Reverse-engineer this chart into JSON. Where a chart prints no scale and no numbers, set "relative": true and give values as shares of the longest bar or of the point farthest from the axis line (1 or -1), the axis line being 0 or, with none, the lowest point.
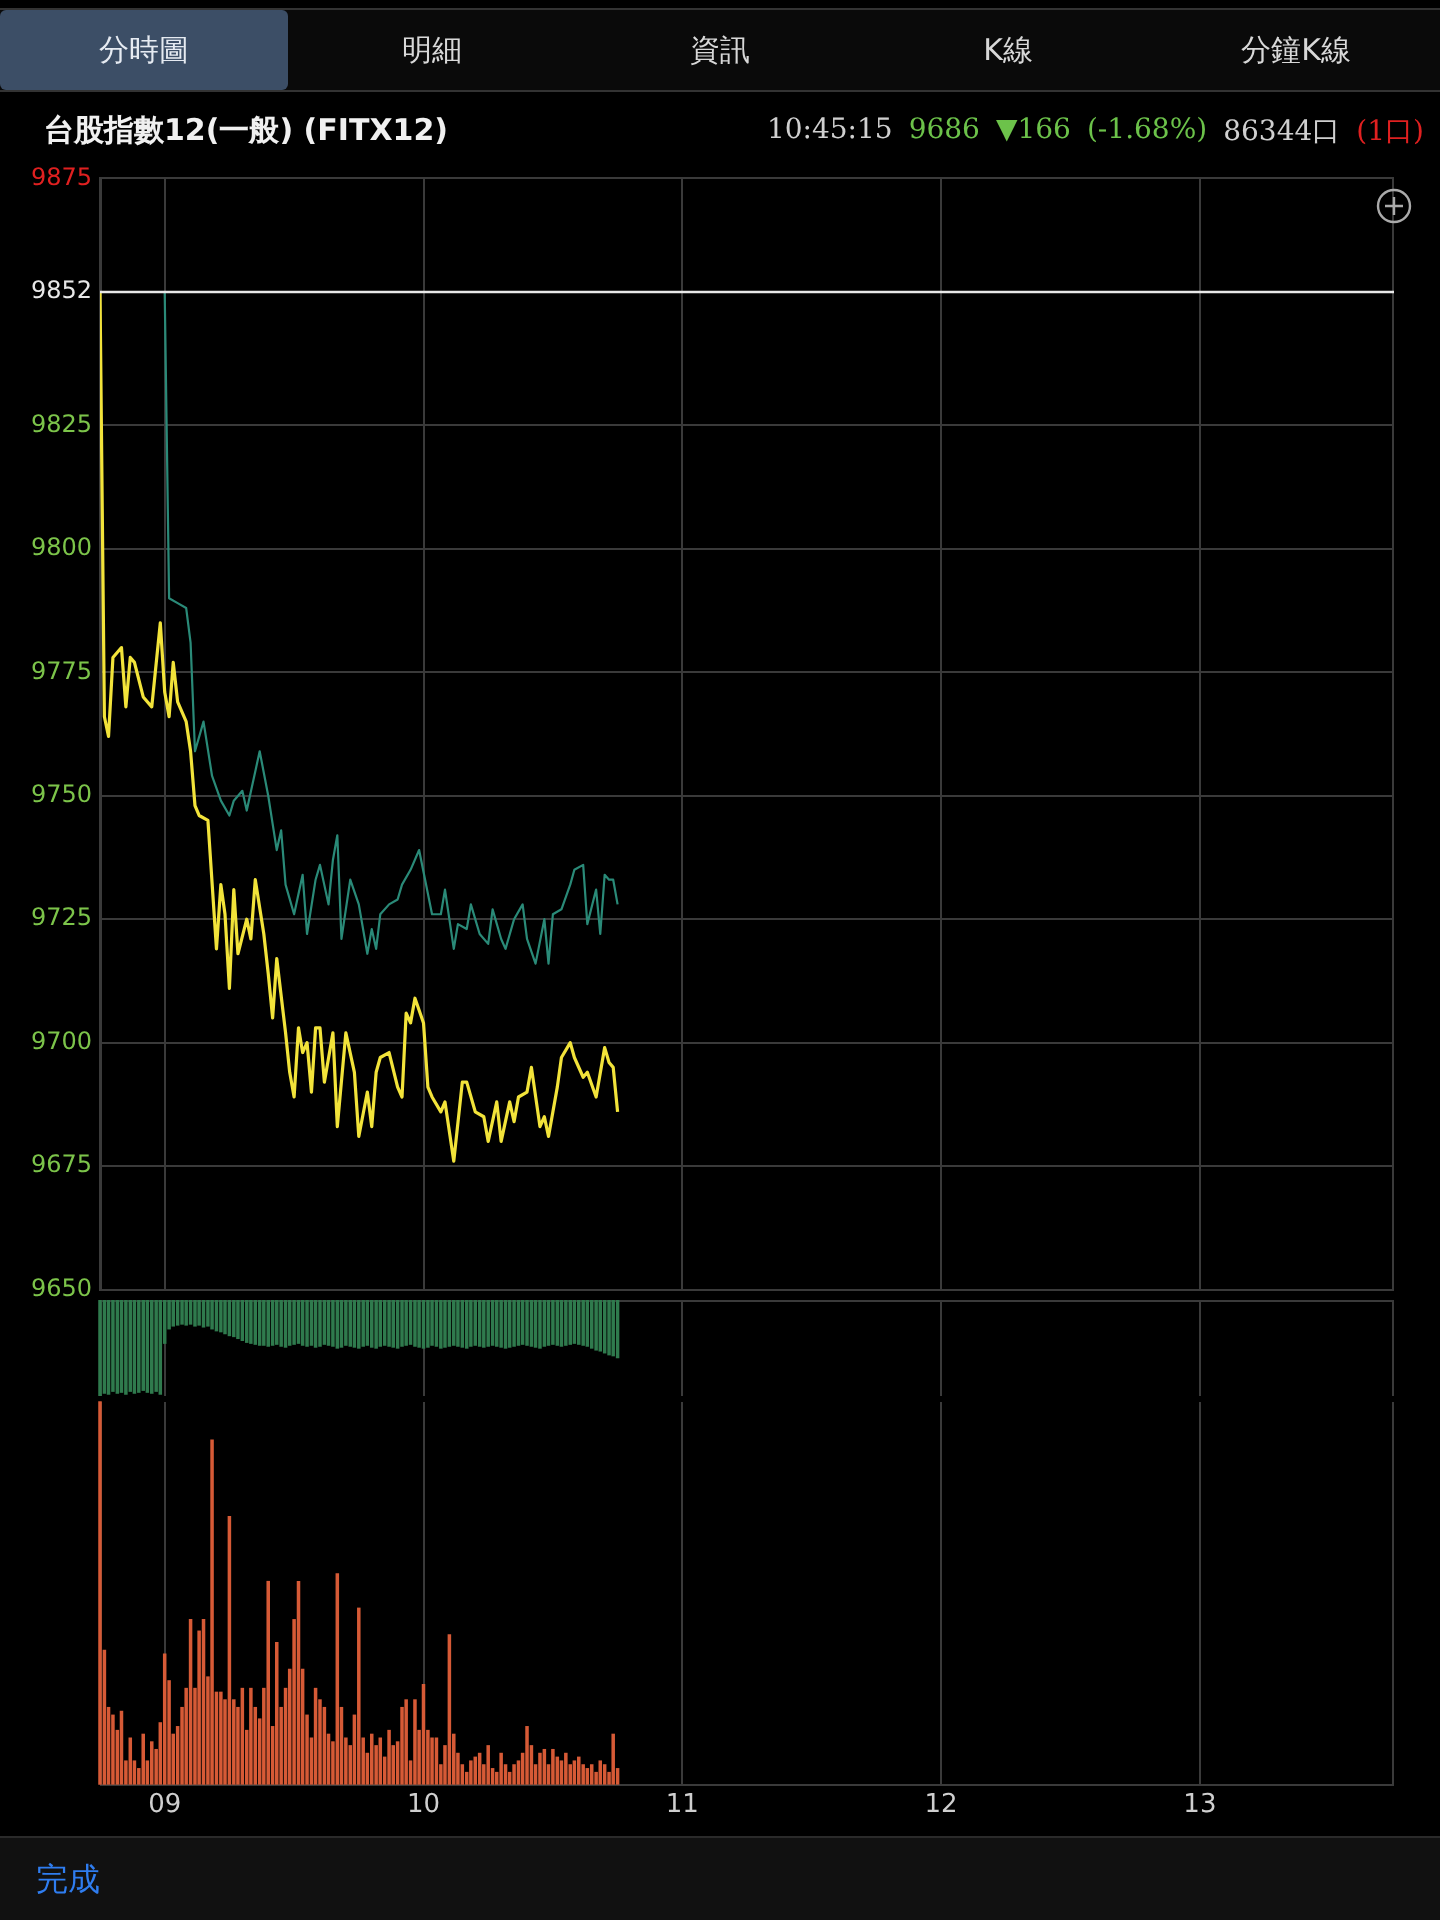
{
  "chart_data": [
    {
      "type": "line",
      "title": "台股指數12(一般) (FITX12)",
      "annotations": [
        "分時圖",
        "明細",
        "資訊",
        "K線",
        "分鐘K線",
        "10:45:15",
        "9686",
        "▼166",
        "(-1.68%)",
        "86344口",
        "(1口)",
        "完成"
      ],
      "xlim": [
        8.75,
        13.75
      ],
      "ylim": [
        9650,
        9875
      ],
      "yticks": [
        9650,
        9675,
        9700,
        9725,
        9750,
        9775,
        9800,
        9825,
        9852,
        9875
      ],
      "grid": true,
      "tick_labels": "y",
      "marker": "none",
      "line_style": "solid",
      "ref_lines": [
        {
          "axis": "y",
          "value": 9852,
          "color": "#e8e8e8"
        }
      ],
      "series": [
        {
          "color": "#f2e33a",
          "x": [
            8.75,
            8.767,
            8.783,
            8.8,
            8.833,
            8.85,
            8.867,
            8.883,
            8.917,
            8.95,
            8.983,
            9.0,
            9.017,
            9.033,
            9.05,
            9.083,
            9.1,
            9.117,
            9.133,
            9.167,
            9.2,
            9.217,
            9.233,
            9.25,
            9.267,
            9.283,
            9.317,
            9.333,
            9.35,
            9.383,
            9.4,
            9.417,
            9.433,
            9.467,
            9.483,
            9.5,
            9.517,
            9.533,
            9.55,
            9.567,
            9.583,
            9.6,
            9.617,
            9.65,
            9.667,
            9.7,
            9.733,
            9.75,
            9.783,
            9.8,
            9.817,
            9.833,
            9.867,
            9.9,
            9.917,
            9.933,
            9.95,
            9.967,
            10.0,
            10.017,
            10.033,
            10.067,
            10.083,
            10.117,
            10.15,
            10.167,
            10.2,
            10.233,
            10.25,
            10.283,
            10.3,
            10.333,
            10.35,
            10.367,
            10.4,
            10.417,
            10.45,
            10.467,
            10.483,
            10.517,
            10.533,
            10.567,
            10.583,
            10.617,
            10.633,
            10.667,
            10.7,
            10.717,
            10.733,
            10.75
          ],
          "values": [
            9852,
            9766,
            9762,
            9778,
            9780,
            9768,
            9778,
            9777,
            9770,
            9768,
            9785,
            9771,
            9766,
            9777,
            9769,
            9765,
            9759,
            9748,
            9746,
            9745,
            9719,
            9732,
            9726,
            9711,
            9731,
            9718,
            9725,
            9721,
            9733,
            9722,
            9714,
            9705,
            9717,
            9702,
            9694,
            9689,
            9703,
            9698,
            9700,
            9690,
            9703,
            9703,
            9692,
            9702,
            9683,
            9702,
            9694,
            9681,
            9690,
            9683,
            9694,
            9697,
            9698,
            9691,
            9689,
            9706,
            9704,
            9709,
            9704,
            9691,
            9689,
            9686,
            9688,
            9676,
            9692,
            9692,
            9686,
            9685,
            9680,
            9688,
            9680,
            9688,
            9684,
            9689,
            9690,
            9695,
            9683,
            9685,
            9681,
            9691,
            9697,
            9700,
            9697,
            9693,
            9694,
            9689,
            9699,
            9696,
            9695,
            9686
          ]
        },
        {
          "color": "#2a8a78",
          "x": [
            9.0,
            9.017,
            9.05,
            9.083,
            9.1,
            9.117,
            9.15,
            9.183,
            9.217,
            9.25,
            9.267,
            9.3,
            9.317,
            9.367,
            9.4,
            9.433,
            9.45,
            9.467,
            9.5,
            9.533,
            9.55,
            9.583,
            9.6,
            9.633,
            9.65,
            9.667,
            9.683,
            9.717,
            9.75,
            9.783,
            9.8,
            9.817,
            9.833,
            9.867,
            9.9,
            9.917,
            9.95,
            9.983,
            10.033,
            10.067,
            10.083,
            10.117,
            10.133,
            10.167,
            10.183,
            10.217,
            10.25,
            10.267,
            10.3,
            10.317,
            10.35,
            10.383,
            10.4,
            10.433,
            10.467,
            10.483,
            10.5,
            10.533,
            10.567,
            10.583,
            10.617,
            10.633,
            10.667,
            10.683,
            10.7,
            10.717,
            10.733,
            10.75
          ],
          "values": [
            9852,
            9790,
            9789,
            9788,
            9781,
            9759,
            9765,
            9754,
            9749,
            9746,
            9749,
            9751,
            9747,
            9759,
            9750,
            9739,
            9743,
            9732,
            9726,
            9734,
            9722,
            9733,
            9736,
            9728,
            9737,
            9742,
            9721,
            9733,
            9728,
            9718,
            9723,
            9719,
            9726,
            9728,
            9729,
            9732,
            9735,
            9739,
            9726,
            9726,
            9731,
            9719,
            9724,
            9723,
            9728,
            9722,
            9720,
            9727,
            9721,
            9719,
            9725,
            9728,
            9721,
            9716,
            9725,
            9716,
            9726,
            9727,
            9732,
            9735,
            9736,
            9724,
            9731,
            9722,
            9734,
            9733,
            9733,
            9728
          ]
        }
      ]
    },
    {
      "type": "bar",
      "relative": true,
      "xlim": [
        8.75,
        13.75
      ],
      "grid": "x",
      "tick_labels": false,
      "series": [
        {
          "color": "#2f7a4d",
          "x": [
            8.75,
            8.767,
            8.783,
            8.8,
            8.817,
            8.833,
            8.85,
            8.867,
            8.883,
            8.9,
            8.917,
            8.933,
            8.95,
            8.967,
            8.983,
            9.0,
            9.017,
            9.033,
            9.05,
            9.067,
            9.083,
            9.1,
            9.117,
            9.133,
            9.15,
            9.167,
            9.183,
            9.2,
            9.217,
            9.233,
            9.25,
            9.267,
            9.283,
            9.3,
            9.317,
            9.333,
            9.35,
            9.367,
            9.383,
            9.4,
            9.417,
            9.433,
            9.45,
            9.467,
            9.483,
            9.5,
            9.517,
            9.533,
            9.55,
            9.567,
            9.583,
            9.6,
            9.617,
            9.633,
            9.65,
            9.667,
            9.683,
            9.7,
            9.717,
            9.733,
            9.75,
            9.767,
            9.783,
            9.8,
            9.817,
            9.833,
            9.85,
            9.867,
            9.883,
            9.9,
            9.917,
            9.933,
            9.95,
            9.967,
            9.983,
            10.0,
            10.017,
            10.033,
            10.05,
            10.067,
            10.083,
            10.1,
            10.117,
            10.133,
            10.15,
            10.167,
            10.183,
            10.2,
            10.217,
            10.233,
            10.25,
            10.267,
            10.283,
            10.3,
            10.317,
            10.333,
            10.35,
            10.367,
            10.383,
            10.4,
            10.417,
            10.433,
            10.45,
            10.467,
            10.483,
            10.5,
            10.517,
            10.533,
            10.55,
            10.567,
            10.583,
            10.6,
            10.617,
            10.633,
            10.65,
            10.667,
            10.683,
            10.7,
            10.717,
            10.733,
            10.75
          ],
          "values": [
            -1,
            -0.97,
            -0.98,
            -0.95,
            -0.97,
            -0.96,
            -0.98,
            -0.95,
            -0.97,
            -0.96,
            -0.94,
            -0.96,
            -0.97,
            -0.95,
            -0.98,
            -0.45,
            -0.3,
            -0.27,
            -0.26,
            -0.25,
            -0.26,
            -0.25,
            -0.27,
            -0.26,
            -0.28,
            -0.27,
            -0.3,
            -0.32,
            -0.33,
            -0.35,
            -0.37,
            -0.38,
            -0.4,
            -0.42,
            -0.44,
            -0.45,
            -0.46,
            -0.47,
            -0.47,
            -0.48,
            -0.47,
            -0.46,
            -0.48,
            -0.49,
            -0.47,
            -0.46,
            -0.45,
            -0.47,
            -0.48,
            -0.47,
            -0.49,
            -0.48,
            -0.46,
            -0.47,
            -0.48,
            -0.5,
            -0.49,
            -0.47,
            -0.48,
            -0.49,
            -0.5,
            -0.48,
            -0.47,
            -0.49,
            -0.5,
            -0.48,
            -0.47,
            -0.48,
            -0.49,
            -0.5,
            -0.48,
            -0.47,
            -0.46,
            -0.48,
            -0.49,
            -0.5,
            -0.49,
            -0.47,
            -0.48,
            -0.5,
            -0.49,
            -0.48,
            -0.47,
            -0.48,
            -0.49,
            -0.5,
            -0.48,
            -0.47,
            -0.48,
            -0.49,
            -0.48,
            -0.47,
            -0.48,
            -0.49,
            -0.5,
            -0.49,
            -0.48,
            -0.47,
            -0.46,
            -0.47,
            -0.48,
            -0.49,
            -0.5,
            -0.48,
            -0.47,
            -0.46,
            -0.47,
            -0.48,
            -0.47,
            -0.46,
            -0.45,
            -0.46,
            -0.47,
            -0.48,
            -0.5,
            -0.52,
            -0.53,
            -0.55,
            -0.57,
            -0.58,
            -0.6
          ]
        }
      ]
    },
    {
      "type": "bar",
      "relative": true,
      "xlim": [
        8.75,
        13.75
      ],
      "xticks": [
        {
          "value": 9,
          "label": "09"
        },
        {
          "value": 10,
          "label": "10"
        },
        11,
        12,
        13
      ],
      "grid": "x",
      "tick_labels": "x",
      "series": [
        {
          "color": "#d65a36",
          "x": [
            8.75,
            8.767,
            8.783,
            8.8,
            8.817,
            8.833,
            8.85,
            8.867,
            8.883,
            8.9,
            8.917,
            8.933,
            8.95,
            8.967,
            8.983,
            9.0,
            9.017,
            9.033,
            9.05,
            9.067,
            9.083,
            9.1,
            9.117,
            9.133,
            9.15,
            9.167,
            9.183,
            9.2,
            9.217,
            9.233,
            9.25,
            9.267,
            9.283,
            9.3,
            9.317,
            9.333,
            9.35,
            9.367,
            9.383,
            9.4,
            9.417,
            9.433,
            9.45,
            9.467,
            9.483,
            9.5,
            9.517,
            9.533,
            9.55,
            9.567,
            9.583,
            9.6,
            9.617,
            9.633,
            9.65,
            9.667,
            9.683,
            9.7,
            9.717,
            9.733,
            9.75,
            9.767,
            9.783,
            9.8,
            9.817,
            9.833,
            9.85,
            9.867,
            9.883,
            9.9,
            9.917,
            9.933,
            9.95,
            9.967,
            9.983,
            10.0,
            10.017,
            10.033,
            10.05,
            10.067,
            10.083,
            10.1,
            10.117,
            10.133,
            10.15,
            10.167,
            10.183,
            10.2,
            10.217,
            10.233,
            10.25,
            10.267,
            10.283,
            10.3,
            10.317,
            10.333,
            10.35,
            10.367,
            10.383,
            10.4,
            10.417,
            10.433,
            10.45,
            10.467,
            10.483,
            10.5,
            10.517,
            10.533,
            10.55,
            10.567,
            10.583,
            10.6,
            10.617,
            10.633,
            10.65,
            10.667,
            10.683,
            10.7,
            10.717,
            10.733,
            10.75
          ],
          "values": [
            1,
            0.35,
            0.2,
            0.18,
            0.14,
            0.19,
            0.06,
            0.12,
            0.06,
            0.04,
            0.13,
            0.06,
            0.11,
            0.09,
            0.16,
            0.34,
            0.27,
            0.13,
            0.15,
            0.2,
            0.25,
            0.43,
            0.25,
            0.4,
            0.43,
            0.28,
            0.9,
            0.24,
            0.24,
            0.22,
            0.7,
            0.22,
            0.2,
            0.25,
            0.14,
            0.25,
            0.2,
            0.17,
            0.25,
            0.53,
            0.15,
            0.37,
            0.2,
            0.25,
            0.3,
            0.43,
            0.53,
            0.3,
            0.18,
            0.12,
            0.25,
            0.22,
            0.2,
            0.13,
            0.11,
            0.55,
            0.2,
            0.12,
            0.1,
            0.18,
            0.46,
            0.12,
            0.08,
            0.13,
            0.1,
            0.12,
            0.07,
            0.14,
            0.1,
            0.11,
            0.2,
            0.22,
            0.06,
            0.22,
            0.14,
            0.26,
            0.14,
            0.12,
            0.12,
            0.05,
            0.1,
            0.39,
            0.13,
            0.08,
            0.05,
            0.03,
            0.06,
            0.07,
            0.08,
            0.05,
            0.1,
            0.04,
            0.03,
            0.08,
            0.05,
            0.03,
            0.05,
            0.06,
            0.08,
            0.15,
            0.1,
            0.05,
            0.08,
            0.09,
            0.05,
            0.09,
            0.07,
            0.06,
            0.08,
            0.05,
            0.06,
            0.07,
            0.05,
            0.04,
            0.05,
            0.03,
            0.06,
            0.05,
            0.03,
            0.13,
            0.04
          ]
        }
      ]
    }
  ]
}
